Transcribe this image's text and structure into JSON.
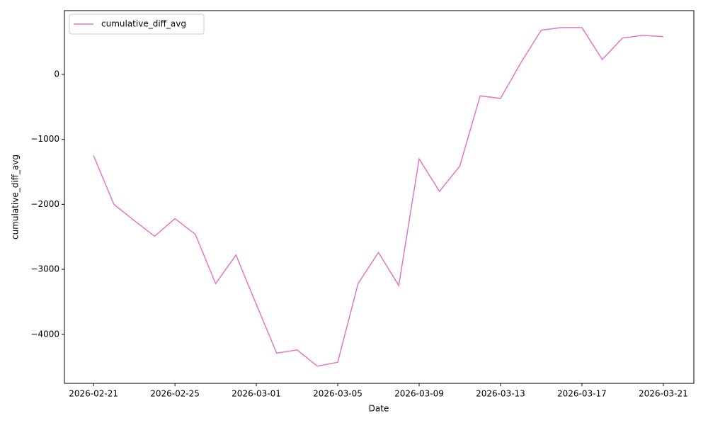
{
  "chart_data": {
    "type": "line",
    "x_label": "Date",
    "y_label": "cumulative_diff_avg",
    "x": [
      "2026-02-21",
      "2026-02-22",
      "2026-02-23",
      "2026-02-24",
      "2026-02-25",
      "2026-02-26",
      "2026-02-27",
      "2026-02-28",
      "2026-03-01",
      "2026-03-02",
      "2026-03-03",
      "2026-03-04",
      "2026-03-05",
      "2026-03-06",
      "2026-03-07",
      "2026-03-08",
      "2026-03-09",
      "2026-03-10",
      "2026-03-11",
      "2026-03-12",
      "2026-03-13",
      "2026-03-14",
      "2026-03-15",
      "2026-03-16",
      "2026-03-17",
      "2026-03-18",
      "2026-03-19",
      "2026-03-20",
      "2026-03-21"
    ],
    "series": [
      {
        "name": "cumulative_diff_avg",
        "color": "#e377c2",
        "values": [
          -1250,
          -2000,
          -2250,
          -2490,
          -2220,
          -2460,
          -3220,
          -2780,
          -3540,
          -4290,
          -4240,
          -4490,
          -4430,
          -3220,
          -2740,
          -3250,
          -1300,
          -1800,
          -1410,
          -330,
          -370,
          180,
          680,
          720,
          720,
          230,
          560,
          600,
          580
        ]
      }
    ],
    "xlim": [
      "2026-02-19T13:40:00Z",
      "2026-03-22T12:00:00Z"
    ],
    "xticks": [
      "2026-02-21",
      "2026-02-25",
      "2026-03-01",
      "2026-03-05",
      "2026-03-09",
      "2026-03-13",
      "2026-03-17",
      "2026-03-21"
    ],
    "ylim": [
      -4755,
      981
    ],
    "yticks": [
      {
        "value": -4000,
        "label": "−4000"
      },
      {
        "value": -3000,
        "label": "−3000"
      },
      {
        "value": -2000,
        "label": "−2000"
      },
      {
        "value": -1000,
        "label": "−1000"
      },
      0
    ],
    "grid": false,
    "legend": "upper left"
  }
}
